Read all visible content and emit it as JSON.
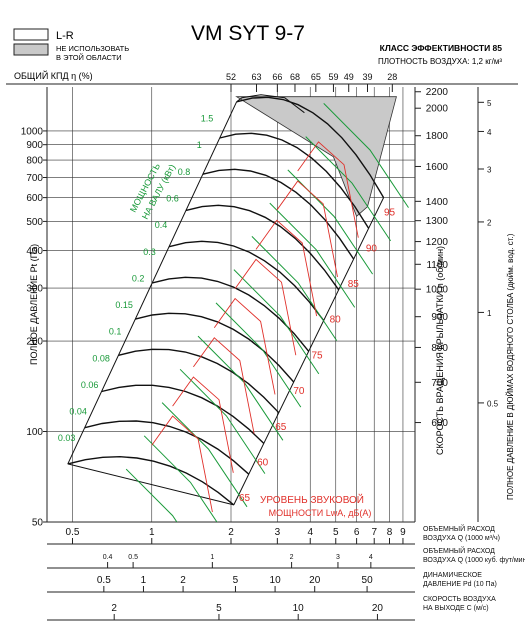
{
  "chart_data": {
    "type": "line",
    "title": "VM SYT 9-7",
    "efficiency_class": "КЛАСС ЭФФЕКТИВНОСТИ 85",
    "air_density": "ПЛОТНОСТЬ ВОЗДУХА: 1,2 кг/м³",
    "legend": {
      "lr_label": "L-R",
      "not_used_label_1": "НЕ ИСПОЛЬЗОВАТЬ",
      "not_used_label_2": "В ЭТОЙ ОБЛАСТИ"
    },
    "efficiency_axis_label": "ОБЩИЙ КПД η (%)",
    "efficiency_ticks": [
      "52",
      "63",
      "66",
      "68",
      "65",
      "59",
      "49",
      "39",
      "28"
    ],
    "y_left_label": "ПОЛНОЕ ДАВЛЕНИЕ Pt (Па)",
    "y_left_scale": "log",
    "y_left_range": [
      50,
      1400
    ],
    "y_left_ticks": [
      "1000",
      "900",
      "800",
      "700",
      "600",
      "500",
      "400",
      "300",
      "200",
      "100",
      "50"
    ],
    "y_mid_label": "СКОРОСТЬ ВРАЩЕНИЯ КРЫЛЬЧАТКИ n (об/мин)",
    "speed_ticks": [
      "2200",
      "2000",
      "1800",
      "1600",
      "1400",
      "1300",
      "1200",
      "1100",
      "1000",
      "900",
      "800",
      "700",
      "600"
    ],
    "y_right_label": "ПОЛНОЕ ДАВЛЕНИЕ В ДЮЙМАХ ВОДЯНОГО СТОЛБА (дюйм. вод. ст.)",
    "inch_ticks": [
      "5",
      "4",
      "3",
      "2",
      "1",
      "0.5"
    ],
    "shaft_power_label_1": "МОЩНОСТЬ",
    "shaft_power_label_2": "НА ВАЛУ (кВт)",
    "shaft_power_values": [
      "1.5",
      "1",
      "0.8",
      "0.6",
      "0.4",
      "0.3",
      "0.2",
      "0.15",
      "0.1",
      "0.08",
      "0.06",
      "0.04",
      "0.03"
    ],
    "sound_label_1": "УРОВЕНЬ ЗВУКОВОЙ",
    "sound_label_2": "МОЩНОСТИ LwA, дБ(A)",
    "sound_values": [
      "95",
      "90",
      "85",
      "80",
      "75",
      "70",
      "65",
      "60",
      "65"
    ],
    "x_axes": [
      {
        "label_1": "ОБЪЕМНЫЙ РАСХОД",
        "label_2": "ВОЗДУХА Q (1000 м³/ч)",
        "ticks": [
          "0.5",
          "1",
          "2",
          "3",
          "4",
          "5",
          "6",
          "7",
          "8",
          "9"
        ]
      },
      {
        "label_1": "ОБЪЕМНЫЙ РАСХОД",
        "label_2": "ВОЗДУХА Q (1000 куб. фут/мин)",
        "ticks": [
          "0.4",
          "0.5",
          "1",
          "2",
          "3",
          "4"
        ]
      },
      {
        "label_1": "ДИНАМИЧЕСКОЕ",
        "label_2": "ДАВЛЕНИЕ Pd (10 Па)",
        "ticks": [
          "0.5",
          "1",
          "2",
          "5",
          "10",
          "20",
          "50"
        ]
      },
      {
        "label_1": "СКОРОСТЬ ВОЗДУХА",
        "label_2": "НА ВЫХОДЕ C (м/с)",
        "ticks": [
          "2",
          "5",
          "10",
          "20"
        ]
      }
    ],
    "x_scale": "log",
    "x_range": [
      0.4,
      10
    ],
    "grid": true,
    "colors": {
      "fan_curves": "#111111",
      "power_curves": "#1a9a3a",
      "sound_curves": "#e0302a",
      "restricted_zone": "#c9c9c9"
    }
  }
}
